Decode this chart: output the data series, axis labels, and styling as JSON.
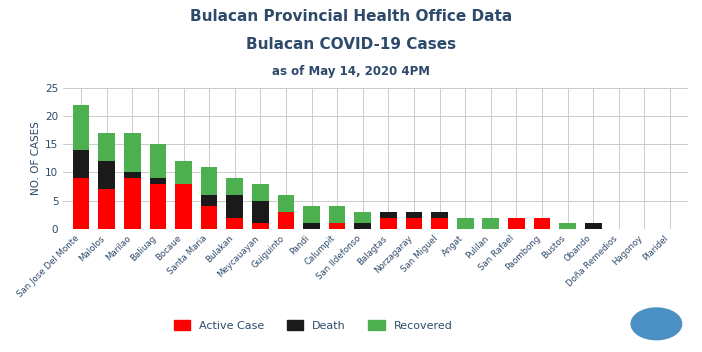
{
  "title1": "Bulacan Provincial Health Office Data",
  "title2": "Bulacan COVID-19 Cases",
  "title3": "as of May 14, 2020 4PM",
  "categories": [
    "San Jose Del Monte",
    "Malolos",
    "Marilao",
    "Baliuag",
    "Bocaue",
    "Santa Maria",
    "Bulakan",
    "Meycauayan",
    "Guiguinto",
    "Pandi",
    "Calumpit",
    "San Ildefonso",
    "Balagtas",
    "Norzagaray",
    "San Miguel",
    "Angat",
    "Pulilan",
    "San Rafael",
    "Paombong",
    "Bustos",
    "Obando",
    "Doña Remedios",
    "Hagonoy",
    "Plaridel"
  ],
  "active": [
    9,
    7,
    9,
    8,
    8,
    4,
    2,
    1,
    3,
    0,
    1,
    0,
    2,
    2,
    2,
    0,
    0,
    2,
    2,
    0,
    0,
    0,
    0,
    0
  ],
  "death": [
    5,
    5,
    1,
    1,
    0,
    2,
    4,
    4,
    0,
    1,
    0,
    1,
    1,
    1,
    1,
    0,
    0,
    0,
    0,
    0,
    1,
    0,
    0,
    0
  ],
  "recovered": [
    8,
    5,
    7,
    6,
    4,
    5,
    3,
    3,
    3,
    3,
    3,
    2,
    0,
    0,
    0,
    2,
    2,
    0,
    0,
    1,
    0,
    0,
    0,
    0
  ],
  "active_color": "#ff0000",
  "death_color": "#1a1a1a",
  "recovered_color": "#4caf50",
  "title_color": "#2e4a6b",
  "ylabel": "NO. OF CASES",
  "ylim": [
    0,
    25
  ],
  "yticks": [
    0,
    5,
    10,
    15,
    20,
    25
  ],
  "grid_color": "#cccccc",
  "bg_color": "#ffffff",
  "title1_fontsize": 11,
  "title2_fontsize": 11,
  "title3_fontsize": 8.5
}
